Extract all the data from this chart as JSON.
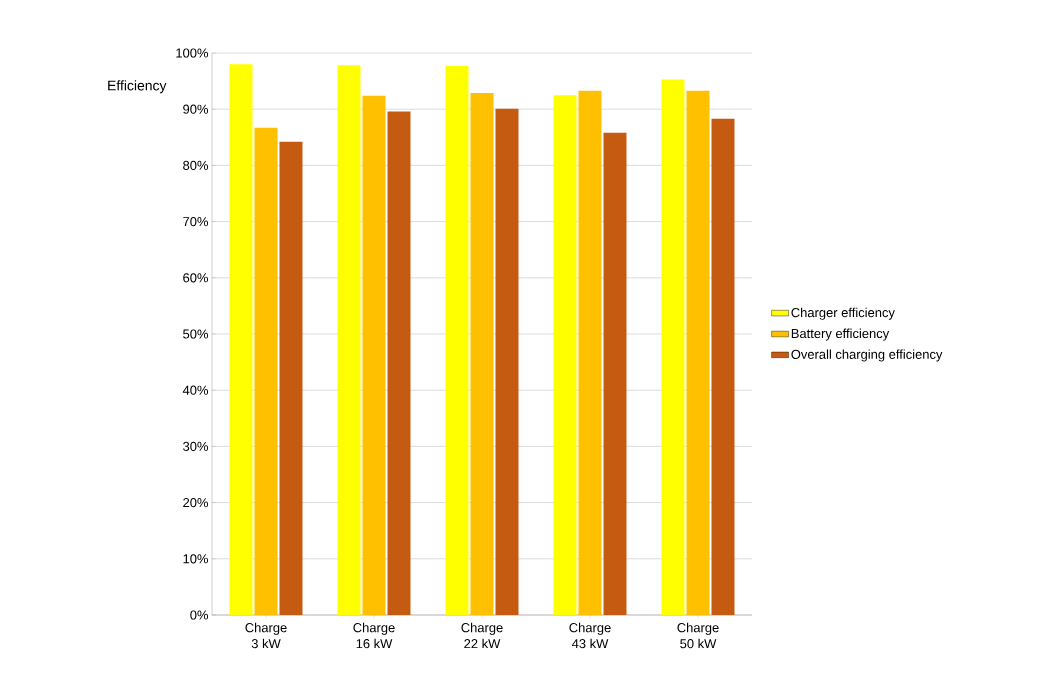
{
  "chart_data": {
    "type": "bar",
    "ylabel": "Efficiency",
    "categories": [
      "Charge\n3 kW",
      "Charge\n16 kW",
      "Charge\n22 kW",
      "Charge\n43 kW",
      "Charge\n50 kW"
    ],
    "series": [
      {
        "name": "Charger efficiency",
        "color": "#ffff00",
        "values": [
          98,
          97.8,
          97.7,
          92.5,
          95.3
        ]
      },
      {
        "name": "Battery efficiency",
        "color": "#ffc000",
        "values": [
          86.7,
          92.4,
          92.9,
          93.3,
          93.3
        ]
      },
      {
        "name": "Overall charging efficiency",
        "color": "#c55a11",
        "values": [
          84.2,
          89.6,
          90.1,
          85.8,
          88.3
        ]
      }
    ],
    "ylim": [
      0,
      100
    ],
    "yticks": [
      {
        "value": 0,
        "label": "0%"
      },
      {
        "value": 10,
        "label": "10%"
      },
      {
        "value": 20,
        "label": "20%"
      },
      {
        "value": 30,
        "label": "30%"
      },
      {
        "value": 40,
        "label": "40%"
      },
      {
        "value": 50,
        "label": "50%"
      },
      {
        "value": 60,
        "label": "60%"
      },
      {
        "value": 70,
        "label": "70%"
      },
      {
        "value": 80,
        "label": "80%"
      },
      {
        "value": 90,
        "label": "90%"
      },
      {
        "value": 100,
        "label": "100%"
      }
    ],
    "grid": "y",
    "legend": "right"
  }
}
